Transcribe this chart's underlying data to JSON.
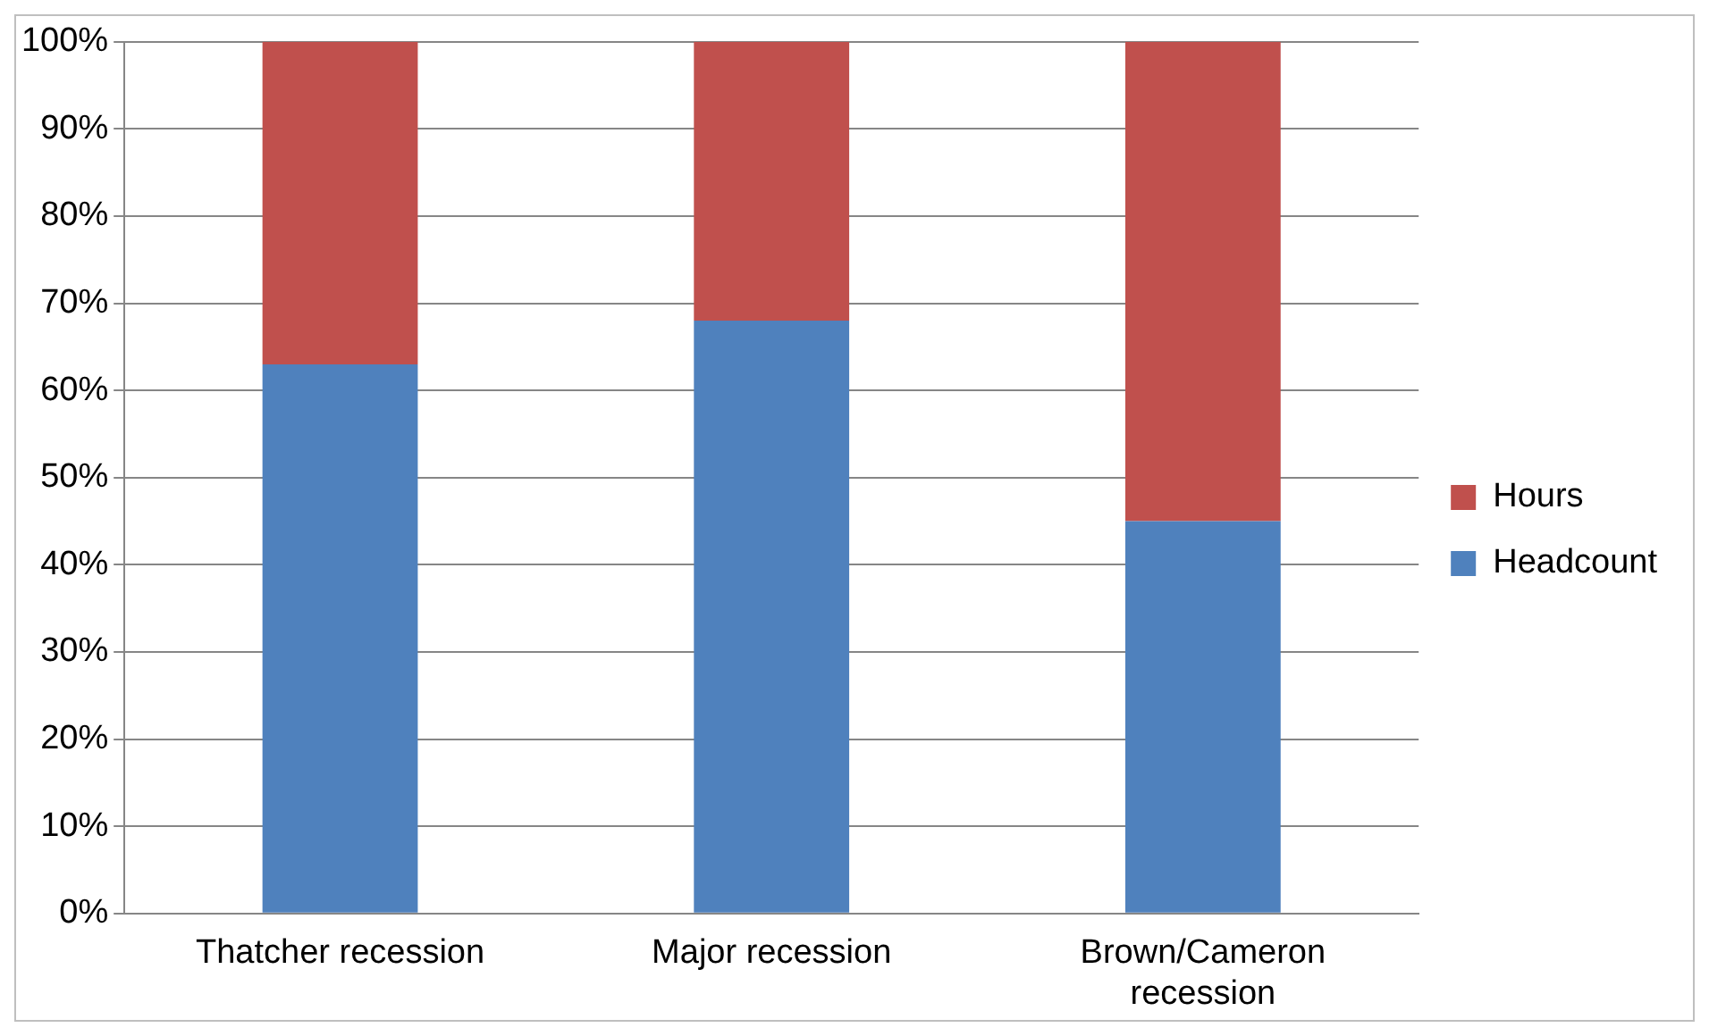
{
  "chart_data": {
    "type": "bar",
    "stacked": true,
    "categories": [
      "Thatcher recession",
      "Major recession",
      "Brown/Cameron recession"
    ],
    "series": [
      {
        "name": "Headcount",
        "color": "#4f81bd",
        "values": [
          63,
          68,
          45
        ]
      },
      {
        "name": "Hours",
        "color": "#c0504d",
        "values": [
          37,
          32,
          55
        ]
      }
    ],
    "ylim": [
      0,
      100
    ],
    "yticks": [
      {
        "value": 0,
        "label": "0%"
      },
      {
        "value": 10,
        "label": "10%"
      },
      {
        "value": 20,
        "label": "20%"
      },
      {
        "value": 30,
        "label": "30%"
      },
      {
        "value": 40,
        "label": "40%"
      },
      {
        "value": 50,
        "label": "50%"
      },
      {
        "value": 60,
        "label": "60%"
      },
      {
        "value": 70,
        "label": "70%"
      },
      {
        "value": 80,
        "label": "80%"
      },
      {
        "value": 90,
        "label": "90%"
      },
      {
        "value": 100,
        "label": "100%"
      }
    ],
    "grid": "y",
    "legend": "right"
  }
}
